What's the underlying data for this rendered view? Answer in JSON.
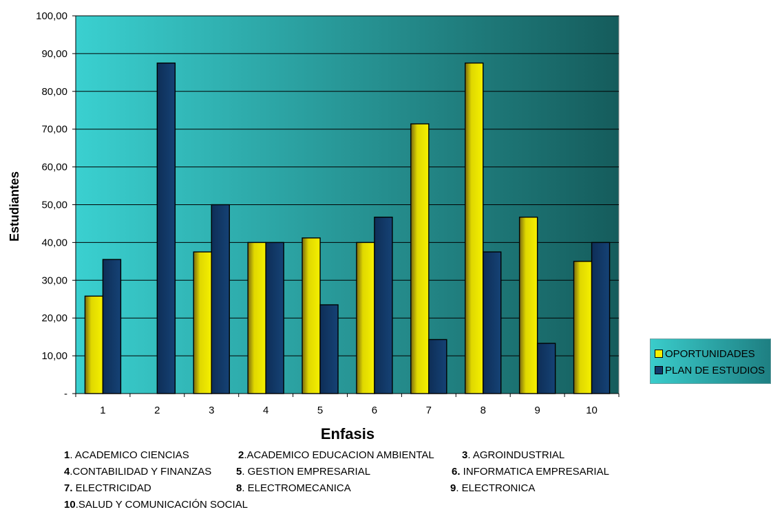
{
  "chart_data": {
    "type": "bar",
    "title": "",
    "xlabel": "Enfasis",
    "ylabel": "Estudiantes",
    "categories": [
      "1",
      "2",
      "3",
      "4",
      "5",
      "6",
      "7",
      "8",
      "9",
      "10"
    ],
    "series": [
      {
        "name": "OPORTUNIDADES",
        "values": [
          25.8,
          0,
          37.5,
          40.0,
          41.2,
          40.0,
          71.4,
          87.5,
          46.7,
          35.0
        ]
      },
      {
        "name": "PLAN DE ESTUDIOS",
        "values": [
          35.5,
          87.5,
          50.0,
          40.0,
          23.5,
          46.7,
          14.3,
          37.5,
          13.3,
          40.0
        ]
      }
    ],
    "ylim": [
      0,
      100
    ],
    "yticks": [
      0,
      10,
      20,
      30,
      40,
      50,
      60,
      70,
      80,
      90,
      100
    ],
    "ytick_labels": [
      "-",
      "10,00",
      "20,00",
      "30,00",
      "40,00",
      "50,00",
      "60,00",
      "70,00",
      "80,00",
      "90,00",
      "100,00"
    ],
    "grid": true,
    "legend_position": "right",
    "colors": {
      "series": [
        "#f2f000",
        "#123a6c"
      ],
      "plot_bg_left": "#3ad0d0",
      "plot_bg_right": "#155c5c"
    }
  },
  "legend": {
    "items": [
      {
        "label": "OPORTUNIDADES",
        "color": "#f5f000"
      },
      {
        "label": "PLAN DE ESTUDIOS",
        "color": "#123a6c"
      }
    ]
  },
  "notes": {
    "rows": [
      [
        {
          "num": "1",
          "text": ". ACADEMICO CIENCIAS"
        },
        {
          "num": "2",
          "text": ".ACADEMICO EDUCACION AMBIENTAL"
        },
        {
          "num": "3",
          "text": ". AGROINDUSTRIAL"
        }
      ],
      [
        {
          "num": "4",
          "text": ".CONTABILIDAD Y FINANZAS"
        },
        {
          "num": "5",
          "text": ". GESTION EMPRESARIAL"
        },
        {
          "num": "6.",
          "text": " INFORMATICA EMPRESARIAL"
        }
      ],
      [
        {
          "num": "7.",
          "text": " ELECTRICIDAD"
        },
        {
          "num": "8",
          "text": ". ELECTROMECANICA"
        },
        {
          "num": "9",
          "text": ". ELECTRONICA"
        }
      ],
      [
        {
          "num": "10",
          "text": ".SALUD Y COMUNICACIÓN SOCIAL"
        }
      ]
    ]
  }
}
